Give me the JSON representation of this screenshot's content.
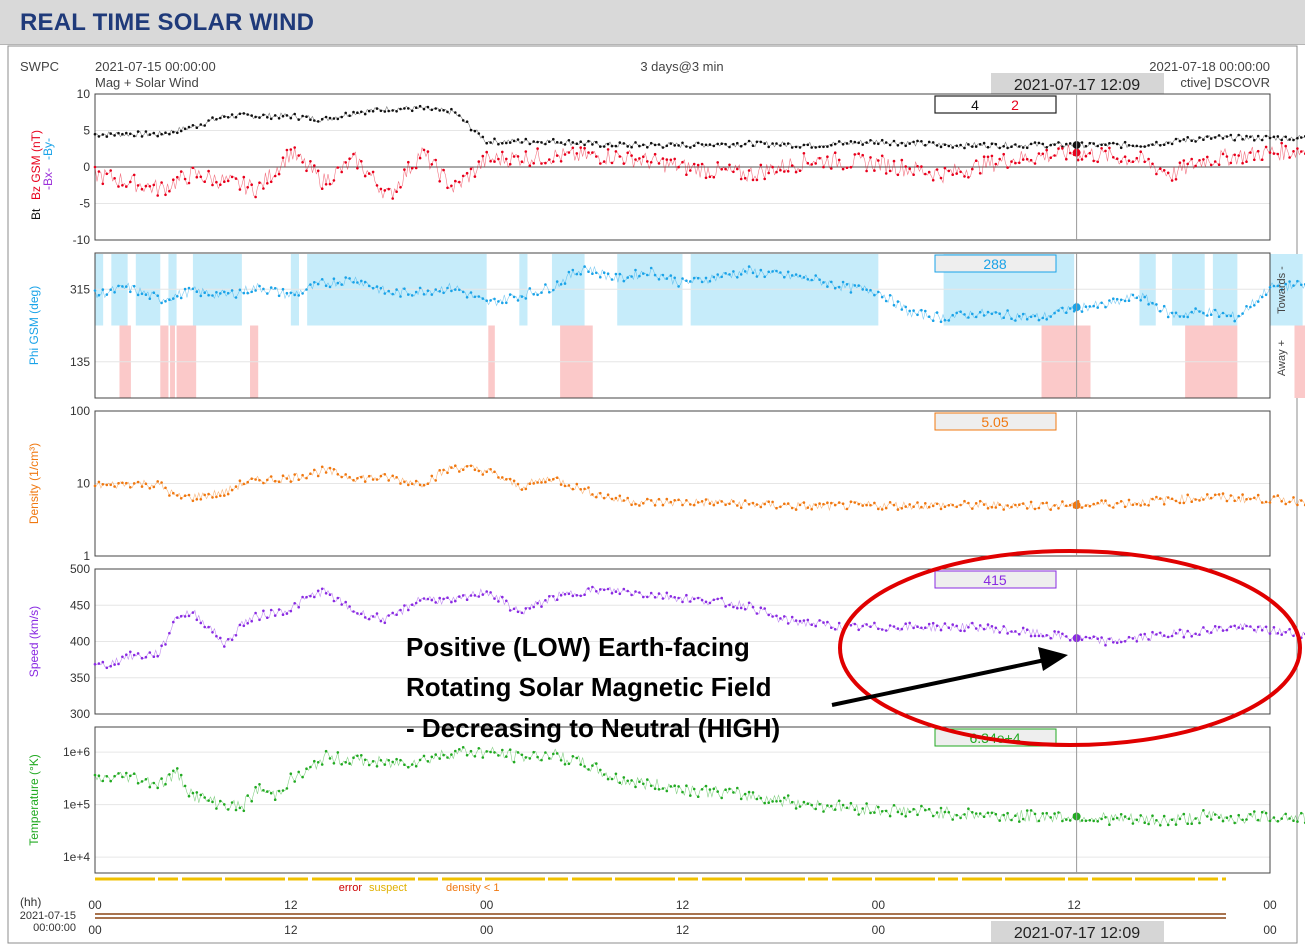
{
  "app_title": "REAL TIME SOLAR WIND",
  "header": {
    "org": "SWPC",
    "start": "2021-07-15 00:00:00",
    "subtitle": "Mag + Solar Wind",
    "span": "3 days@3 min",
    "end": "2021-07-18 00:00:00",
    "source": "ctive] DSCOVR",
    "cursor_time": "2021-07-17 12:09"
  },
  "readouts": {
    "bt": "4",
    "bz": "2",
    "phi": "288",
    "density": "5.05",
    "speed": "415",
    "temperature": "6.34e+4"
  },
  "legend": {
    "error": "error",
    "suspect": "suspect",
    "density": "density < 1"
  },
  "bottom_axis": {
    "hh": "(hh)",
    "date": "2021-07-15",
    "time": "00:00:00"
  },
  "annotation": {
    "line1": "Positive (LOW) Earth-facing",
    "line2": "Rotating Solar Magnetic Field",
    "line3": "- Decreasing to Neutral (HIGH)"
  },
  "colors": {
    "bt": "#111111",
    "bz": "#e8001c",
    "bx": "#9b30d9",
    "by": "#1aa3e8",
    "phi": "#1aa3e8",
    "phi_toward": "#c6ecfa",
    "phi_away": "#fbc9c9",
    "density": "#f07810",
    "speed": "#8a2be2",
    "temperature": "#22aa22",
    "annotation_ellipse": "#e00000"
  },
  "chart_data": {
    "type": "line",
    "time_axis": {
      "start": "2021-07-15 00:00",
      "end": "2021-07-18 00:00",
      "tick_labels": [
        "00",
        "12",
        "00",
        "12",
        "00",
        "12",
        "00"
      ],
      "cursor": "2021-07-17 12:09"
    },
    "panels": [
      {
        "id": "mag",
        "ylabel_parts": [
          "Bt",
          "Bz GSM (nT)",
          "-Bx-",
          "-By-"
        ],
        "ylim": [
          -10,
          10
        ],
        "ticks": [
          "10",
          "5",
          "0",
          "-5",
          "-10"
        ],
        "series": [
          {
            "name": "Bt",
            "hours": [
              0,
              2,
              4,
              6,
              8,
              10,
              12,
              14,
              16,
              18,
              20,
              22,
              24,
              28,
              32,
              36,
              40,
              44,
              48,
              52,
              56,
              60,
              64,
              66,
              68,
              72,
              76,
              80,
              84,
              90
            ],
            "values": [
              4.5,
              4.5,
              4.5,
              5.5,
              7,
              7,
              7,
              6.5,
              7.5,
              8,
              8,
              7.5,
              3.5,
              3.5,
              3,
              3,
              3.2,
              3,
              3.5,
              3,
              3,
              3,
              3,
              3.5,
              4,
              4,
              4,
              4.5,
              5,
              5
            ]
          },
          {
            "name": "Bz",
            "hours": [
              0,
              2,
              4,
              6,
              8,
              10,
              12,
              14,
              16,
              18,
              20,
              22,
              24,
              28,
              32,
              36,
              40,
              44,
              48,
              52,
              56,
              60,
              64,
              66,
              68,
              72,
              76,
              80,
              84,
              90
            ],
            "values": [
              -1,
              -2,
              -3,
              -1,
              -2,
              -3,
              2,
              -2,
              1,
              -4,
              2,
              -3,
              1,
              1.5,
              1.5,
              0,
              -1,
              1,
              0.5,
              -1,
              1,
              2,
              1,
              -1,
              1,
              2,
              2.5,
              -1,
              1,
              3
            ]
          }
        ]
      },
      {
        "id": "phi",
        "ylabel": "Phi GSM (deg)",
        "ylim": [
          45,
          405
        ],
        "ticks": [
          "315",
          "135"
        ],
        "side_labels": [
          "Towards -",
          "Away +"
        ],
        "series": [
          {
            "name": "Phi",
            "hours": [
              0,
              2,
              4,
              6,
              8,
              10,
              12,
              14,
              16,
              18,
              20,
              22,
              24,
              26,
              28,
              30,
              32,
              34,
              36,
              38,
              40,
              42,
              44,
              46,
              48,
              50,
              52,
              54,
              56,
              58,
              60,
              62,
              64,
              66,
              68,
              70,
              72,
              74,
              76,
              78,
              80,
              82,
              84,
              86,
              88,
              90
            ],
            "values": [
              300,
              320,
              290,
              310,
              300,
              320,
              300,
              330,
              340,
              305,
              310,
              320,
              280,
              300,
              320,
              370,
              340,
              360,
              330,
              345,
              360,
              350,
              340,
              320,
              310,
              255,
              245,
              255,
              250,
              245,
              270,
              275,
              300,
              250,
              260,
              245,
              320,
              325,
              250,
              260,
              270,
              285,
              290,
              300,
              310,
              315
            ]
          }
        ],
        "toward_spans_hours": [
          [
            0,
            0.5
          ],
          [
            1,
            2
          ],
          [
            2.5,
            4
          ],
          [
            4.5,
            5
          ],
          [
            6,
            9
          ],
          [
            12,
            12.5
          ],
          [
            13,
            24
          ],
          [
            26,
            26.5
          ],
          [
            28,
            30
          ],
          [
            32,
            36
          ],
          [
            36.5,
            48
          ],
          [
            52,
            60
          ],
          [
            64,
            65
          ],
          [
            66,
            68
          ],
          [
            68.5,
            70
          ],
          [
            72,
            74
          ],
          [
            75,
            76.5
          ],
          [
            77,
            78.5
          ],
          [
            80,
            90
          ]
        ],
        "away_spans_hours": [
          [
            1.5,
            2.2
          ],
          [
            4,
            4.5
          ],
          [
            4.6,
            4.9
          ],
          [
            5,
            6.2
          ],
          [
            9.5,
            10
          ],
          [
            24.1,
            24.5
          ],
          [
            28.5,
            30.5
          ],
          [
            58,
            61
          ],
          [
            66.8,
            70
          ],
          [
            73.5,
            76
          ],
          [
            77,
            78
          ],
          [
            80,
            82
          ]
        ]
      },
      {
        "id": "density",
        "ylabel": "Density (1/cm³)",
        "scale": "log",
        "ylim": [
          1,
          100
        ],
        "ticks": [
          "100",
          "10",
          "1"
        ],
        "series": [
          {
            "name": "Density",
            "hours": [
              0,
              1,
              2,
              3,
              4,
              5,
              6,
              7,
              8,
              9,
              10,
              12,
              14,
              16,
              18,
              20,
              22,
              24,
              26,
              28,
              30,
              32,
              34,
              36,
              38,
              40,
              42,
              44,
              48,
              52,
              56,
              60,
              64,
              66,
              68,
              72,
              76,
              80,
              84,
              90
            ],
            "values": [
              9.5,
              9.5,
              10,
              10,
              9.5,
              6.5,
              6.5,
              7,
              7.5,
              10,
              11,
              12,
              15,
              12,
              12,
              10,
              17,
              15,
              9,
              12,
              8,
              6,
              5.5,
              5.5,
              5.5,
              5.2,
              5,
              4.8,
              5,
              5,
              5,
              5,
              5.5,
              6,
              6.5,
              6,
              5.5,
              7.5,
              7,
              6
            ]
          }
        ]
      },
      {
        "id": "speed",
        "ylabel": "Speed (km/s)",
        "ylim": [
          300,
          500
        ],
        "ticks": [
          "500",
          "450",
          "400",
          "350",
          "300"
        ],
        "series": [
          {
            "name": "Speed",
            "hours": [
              0,
              1,
              2,
              3,
              4,
              5,
              6,
              7,
              8,
              9,
              10,
              11,
              12,
              13,
              14,
              16,
              18,
              20,
              22,
              24,
              26,
              28,
              30,
              32,
              34,
              36,
              38,
              40,
              42,
              44,
              46,
              48,
              50,
              52,
              54,
              56,
              58,
              60,
              62,
              64,
              66,
              68,
              70,
              72,
              74,
              76,
              78,
              80,
              82,
              84,
              86,
              88,
              90
            ],
            "values": [
              365,
              370,
              380,
              380,
              385,
              435,
              440,
              420,
              395,
              425,
              435,
              440,
              445,
              460,
              470,
              440,
              430,
              460,
              455,
              470,
              440,
              460,
              470,
              470,
              465,
              460,
              455,
              450,
              430,
              425,
              420,
              420,
              420,
              420,
              420,
              415,
              410,
              405,
              400,
              405,
              410,
              415,
              420,
              415,
              410,
              405,
              400,
              398,
              395,
              390,
              385,
              380,
              380
            ]
          }
        ]
      },
      {
        "id": "temperature",
        "ylabel": "Temperature (°K)",
        "scale": "log",
        "ylim": [
          5000,
          3000000
        ],
        "ticks": [
          "1e+6",
          "1e+5",
          "1e+4"
        ],
        "series": [
          {
            "name": "Temperature",
            "hours": [
              0,
              2,
              4,
              5,
              6,
              7,
              8,
              9,
              10,
              11,
              12,
              13,
              14,
              16,
              18,
              20,
              22,
              24,
              26,
              28,
              30,
              32,
              36,
              40,
              44,
              48,
              52,
              56,
              60,
              64,
              66,
              68,
              70,
              72,
              76,
              80,
              84,
              90
            ],
            "values": [
              300000,
              350000,
              250000,
              400000,
              150000,
              120000,
              100000,
              90000,
              200000,
              150000,
              300000,
              400000,
              800000,
              700000,
              600000,
              700000,
              1000000,
              1000000,
              800000,
              900000,
              600000,
              300000,
              200000,
              150000,
              100000,
              80000,
              70000,
              60000,
              60000,
              50000,
              50000,
              60000,
              55000,
              60000,
              55000,
              50000,
              50000,
              50000
            ]
          }
        ]
      }
    ]
  }
}
